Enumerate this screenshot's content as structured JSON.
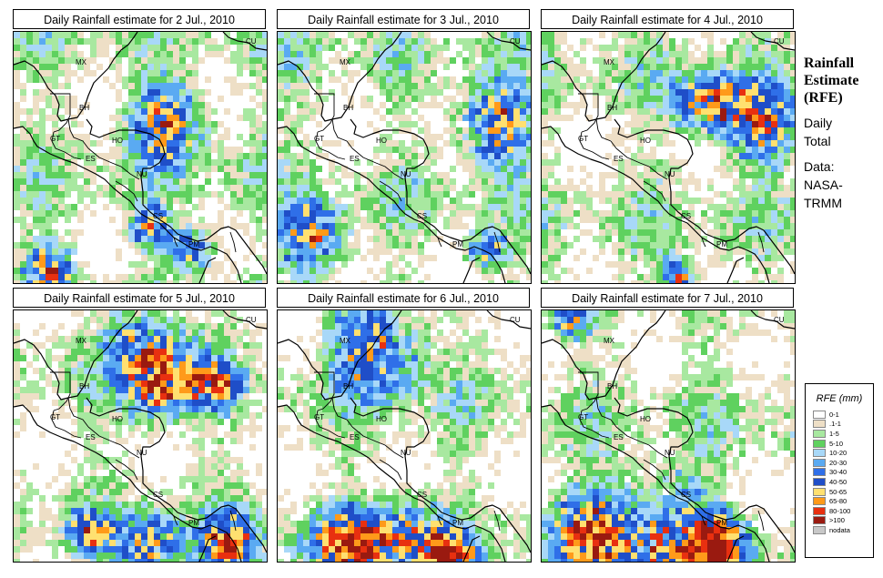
{
  "panels": [
    {
      "title": "Daily Rainfall estimate for  2 Jul., 2010",
      "seed": 11
    },
    {
      "title": "Daily Rainfall estimate for  3 Jul., 2010",
      "seed": 23
    },
    {
      "title": "Daily Rainfall estimate for  4 Jul., 2010",
      "seed": 37
    },
    {
      "title": "Daily Rainfall estimate for  5 Jul., 2010",
      "seed": 41
    },
    {
      "title": "Daily Rainfall estimate for  6 Jul., 2010",
      "seed": 53
    },
    {
      "title": "Daily Rainfall estimate for  7 Jul., 2010",
      "seed": 67
    }
  ],
  "country_labels": [
    "MX",
    "BH",
    "GT",
    "HO",
    "ES",
    "NU",
    "CS",
    "PM",
    "CU"
  ],
  "side_title": {
    "line1": "Rainfall",
    "line2": "Estimate",
    "line3": "(RFE)",
    "sub1": "Daily",
    "sub2": "Total",
    "sub3": "Data:",
    "sub4": "NASA-",
    "sub5": "TRMM"
  },
  "legend": {
    "title": "RFE (mm)",
    "items": [
      {
        "label": "0-1",
        "color": "#ffffff"
      },
      {
        "label": ".1-1",
        "color": "#eedfc6"
      },
      {
        "label": "1-5",
        "color": "#a8e8a0"
      },
      {
        "label": "5-10",
        "color": "#5fd15f"
      },
      {
        "label": "10-20",
        "color": "#a8d8f8"
      },
      {
        "label": "20-30",
        "color": "#5aaaf2"
      },
      {
        "label": "30-40",
        "color": "#2f6fe8"
      },
      {
        "label": "40-50",
        "color": "#1f4ec8"
      },
      {
        "label": "50-65",
        "color": "#ffe070"
      },
      {
        "label": "65-80",
        "color": "#ff9a1a"
      },
      {
        "label": "80-100",
        "color": "#e83010"
      },
      {
        "label": ">100",
        "color": "#9a1a10"
      },
      {
        "label": "nodata",
        "color": "#c8c8c8"
      }
    ]
  }
}
